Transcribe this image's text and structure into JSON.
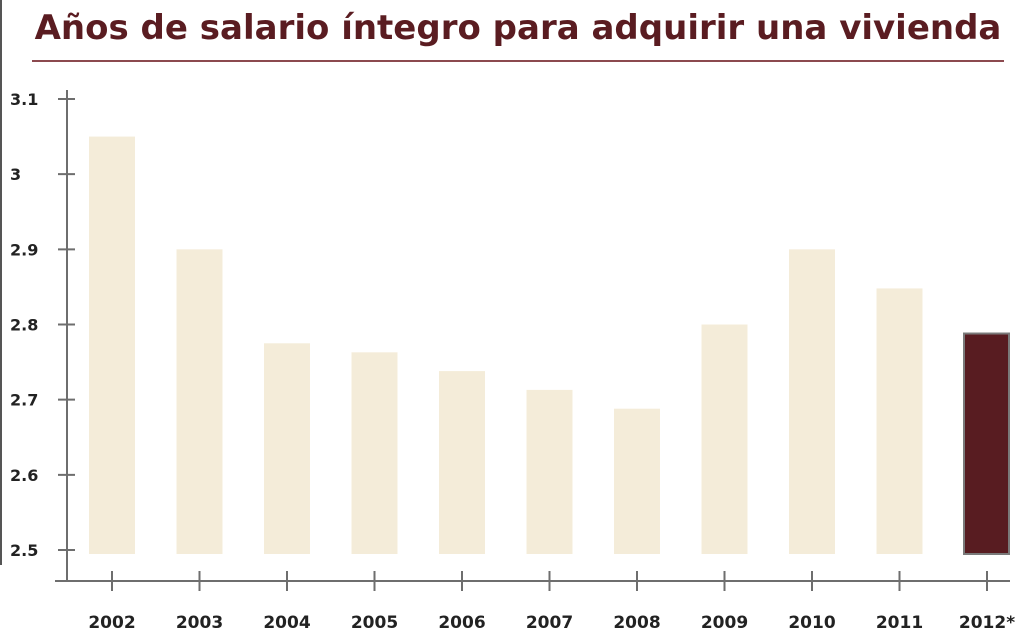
{
  "title": "Años de salario íntegro para adquirir una vivienda",
  "colors": {
    "title": "#5a1c21",
    "bar": "#f4ecd9",
    "highlight": "#581c21",
    "highlight_border": "#7a7a7a",
    "axis": "#6e6e6e",
    "text": "#222222"
  },
  "chart_data": {
    "type": "bar",
    "title": "Años de salario íntegro para adquirir una vivienda",
    "xlabel": "",
    "ylabel": "",
    "categories": [
      "2002",
      "2003",
      "2004",
      "2005",
      "2006",
      "2007",
      "2008",
      "2009",
      "2010",
      "2011",
      "2012*"
    ],
    "values": [
      3.05,
      2.9,
      2.775,
      2.763,
      2.738,
      2.713,
      2.688,
      2.8,
      2.9,
      2.848,
      2.788
    ],
    "highlight_index": 10,
    "ylim": [
      2.5,
      3.1
    ],
    "yticks": [
      2.5,
      2.6,
      2.7,
      2.8,
      2.9,
      3,
      3.1
    ],
    "ytick_labels": [
      "2.5",
      "2.6",
      "2.7",
      "2.8",
      "2.9",
      "3",
      "3.1"
    ],
    "grid": false,
    "legend": "none"
  }
}
